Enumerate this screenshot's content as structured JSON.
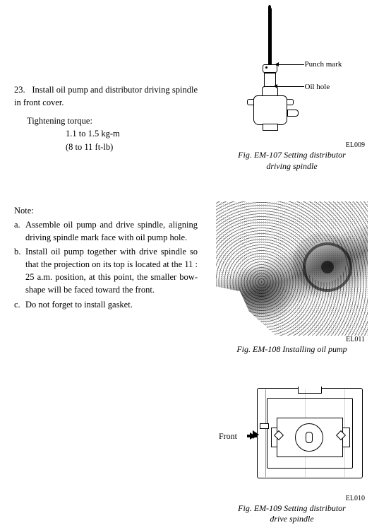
{
  "step": {
    "number": "23.",
    "text": "Install oil pump and distributor driving spindle in front cover."
  },
  "torque": {
    "label": "Tightening torque:",
    "kgm": "1.1 to 1.5 kg-m",
    "ftlb": "(8 to 11 ft-lb)"
  },
  "notes": {
    "heading": "Note:",
    "items": [
      {
        "letter": "a.",
        "text": "Assemble oil pump and drive spindle, aligning driving spindle mark face with oil pump hole."
      },
      {
        "letter": "b.",
        "text": "Install oil pump together with drive spindle so that the projection on its top is located at the 11 : 25 a.m. position, at this point, the smaller bow-shape will be faced toward the front."
      },
      {
        "letter": "c.",
        "text": "Do not forget to install gasket."
      }
    ]
  },
  "fig1": {
    "code": "EL009",
    "caption_l1": "Fig. EM-107 Setting distributor",
    "caption_l2": "driving spindle",
    "label_punch": "Punch mark",
    "label_oil": "Oil hole"
  },
  "fig2": {
    "code": "EL011",
    "caption": "Fig. EM-108  Installing oil pump"
  },
  "fig3": {
    "code": "EL010",
    "caption_l1": "Fig. EM-109 Setting distributor",
    "caption_l2": "drive spindle",
    "label_front": "Front"
  },
  "colors": {
    "text": "#000000",
    "bg": "#ffffff"
  }
}
